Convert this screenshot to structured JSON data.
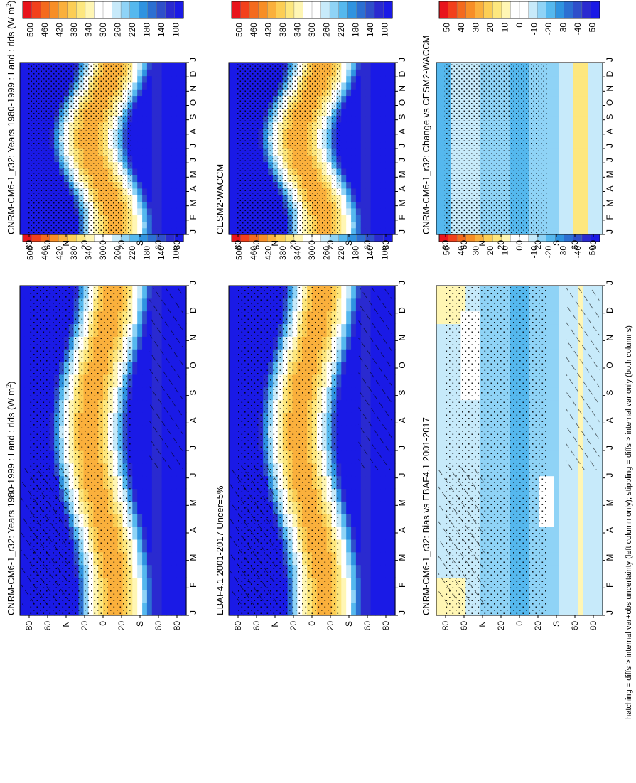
{
  "footnote": "hatching = diffs > internal var+obs uncertainty (left column only); stippling = diffs > internal var only (both columns)",
  "chart_data": [
    {
      "type": "heatmap",
      "title": "CNRM-CM6-1_r32: Years 1980-1999 : Land : rlds (W m",
      "title_sup": "2",
      "title_close": ")",
      "x_ticks": [
        "J",
        "F",
        "M",
        "A",
        "M",
        "J",
        "J",
        "A",
        "S",
        "O",
        "N",
        "D",
        "J"
      ],
      "y_ticks": [
        "80",
        "60",
        "N",
        "20",
        "0",
        "20",
        "S",
        "60",
        "80"
      ],
      "colorbar_ticks": [
        "500",
        "460",
        "420",
        "380",
        "340",
        "300",
        "260",
        "220",
        "180",
        "140",
        "100"
      ],
      "kind": "abs",
      "hatching": true,
      "stippling": "sparse"
    },
    {
      "type": "heatmap",
      "title": "EBAF4.1 2001-2017 Uncer=5%",
      "title_sup": "",
      "title_close": "",
      "x_ticks": [
        "J",
        "F",
        "M",
        "A",
        "M",
        "J",
        "J",
        "A",
        "S",
        "O",
        "N",
        "D",
        "J"
      ],
      "y_ticks": [
        "80",
        "60",
        "N",
        "20",
        "0",
        "20",
        "S",
        "60",
        "80"
      ],
      "colorbar_ticks": [
        "500",
        "460",
        "420",
        "380",
        "340",
        "300",
        "260",
        "220",
        "180",
        "140",
        "100"
      ],
      "kind": "abs",
      "hatching": true,
      "stippling": "sparse"
    },
    {
      "type": "heatmap",
      "title": "CNRM-CM6-1_r32: Bias vs EBAF4.1 2001-2017",
      "title_sup": "",
      "title_close": "",
      "x_ticks": [
        "J",
        "F",
        "M",
        "A",
        "M",
        "J",
        "J",
        "A",
        "S",
        "O",
        "N",
        "D",
        "J"
      ],
      "y_ticks": [
        "80",
        "60",
        "N",
        "20",
        "0",
        "20",
        "S",
        "60",
        "80"
      ],
      "colorbar_ticks": [
        "50",
        "40",
        "30",
        "20",
        "10",
        "0",
        "-10",
        "-20",
        "-30",
        "-40",
        "-50"
      ],
      "kind": "diff",
      "hatching": true,
      "stippling": "sparse"
    },
    {
      "type": "heatmap",
      "title": "CNRM-CM6-1_r32: Years 1980-1999 : Land : rlds (W m",
      "title_sup": "2",
      "title_close": ")",
      "x_ticks": [
        "J",
        "F",
        "M",
        "A",
        "M",
        "J",
        "J",
        "A",
        "S",
        "O",
        "N",
        "D",
        "J"
      ],
      "y_ticks": [
        "80",
        "60",
        "N",
        "20",
        "0",
        "20",
        "S",
        "60",
        "80"
      ],
      "colorbar_ticks": [
        "500",
        "460",
        "420",
        "380",
        "340",
        "300",
        "260",
        "220",
        "180",
        "140",
        "100"
      ],
      "kind": "abs",
      "hatching": false,
      "stippling": "dense"
    },
    {
      "type": "heatmap",
      "title": "CESM2-WACCM",
      "title_sup": "",
      "title_close": "",
      "x_ticks": [
        "J",
        "F",
        "M",
        "A",
        "M",
        "J",
        "J",
        "A",
        "S",
        "O",
        "N",
        "D",
        "J"
      ],
      "y_ticks": [
        "80",
        "60",
        "N",
        "20",
        "0",
        "20",
        "S",
        "60",
        "80"
      ],
      "colorbar_ticks": [
        "500",
        "460",
        "420",
        "380",
        "340",
        "300",
        "260",
        "220",
        "180",
        "140",
        "100"
      ],
      "kind": "abs",
      "hatching": false,
      "stippling": "dense"
    },
    {
      "type": "heatmap",
      "title": "CNRM-CM6-1_r32: Change vs CESM2-WACCM",
      "title_sup": "",
      "title_close": "",
      "x_ticks": [
        "J",
        "F",
        "M",
        "A",
        "M",
        "J",
        "J",
        "A",
        "S",
        "O",
        "N",
        "D",
        "J"
      ],
      "y_ticks": [
        "80",
        "60",
        "N",
        "20",
        "0",
        "20",
        "S",
        "60",
        "80"
      ],
      "colorbar_ticks": [
        "50",
        "40",
        "30",
        "20",
        "10",
        "0",
        "-10",
        "-20",
        "-30",
        "-40",
        "-50"
      ],
      "kind": "diff",
      "hatching": false,
      "stippling": "dense"
    }
  ]
}
